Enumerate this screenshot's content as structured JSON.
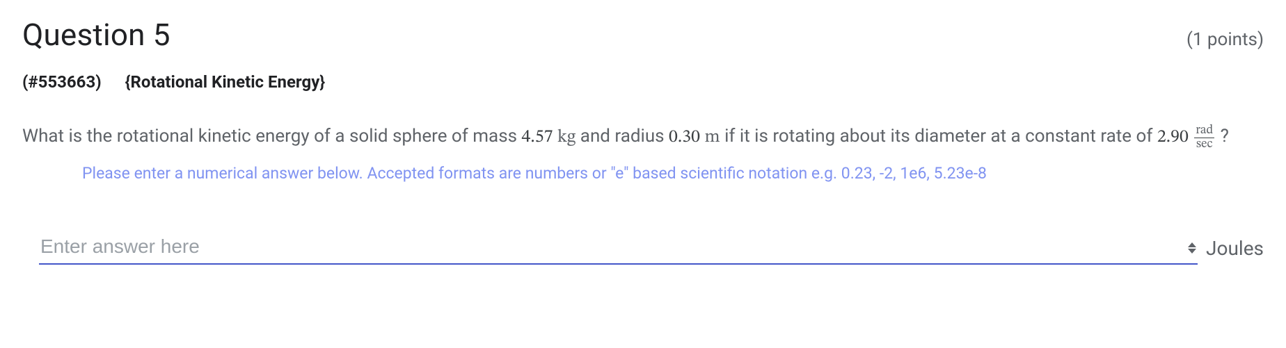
{
  "header": {
    "title": "Question 5",
    "points_label": "(1 points)"
  },
  "sub": {
    "qid": "(#553663)",
    "topic": "{Rotational Kinetic Energy}"
  },
  "question": {
    "pre1": "What is the rotational kinetic energy of a solid sphere of mass ",
    "mass_val": "4.57",
    "mass_unit": "kg",
    "mid1": " and radius ",
    "radius_val": "0.30",
    "radius_unit": "m",
    "mid2": " if it is rotating about its diameter at a constant rate of ",
    "rate_val": "2.90",
    "rate_unit_num": "rad",
    "rate_unit_den": "sec",
    "tail": "?"
  },
  "hint": "Please enter a numerical answer below. Accepted formats are numbers or \"e\" based scientific notation e.g. 0.23, -2, 1e6, 5.23e-8",
  "answer": {
    "placeholder": "Enter answer here",
    "unit": "Joules"
  }
}
